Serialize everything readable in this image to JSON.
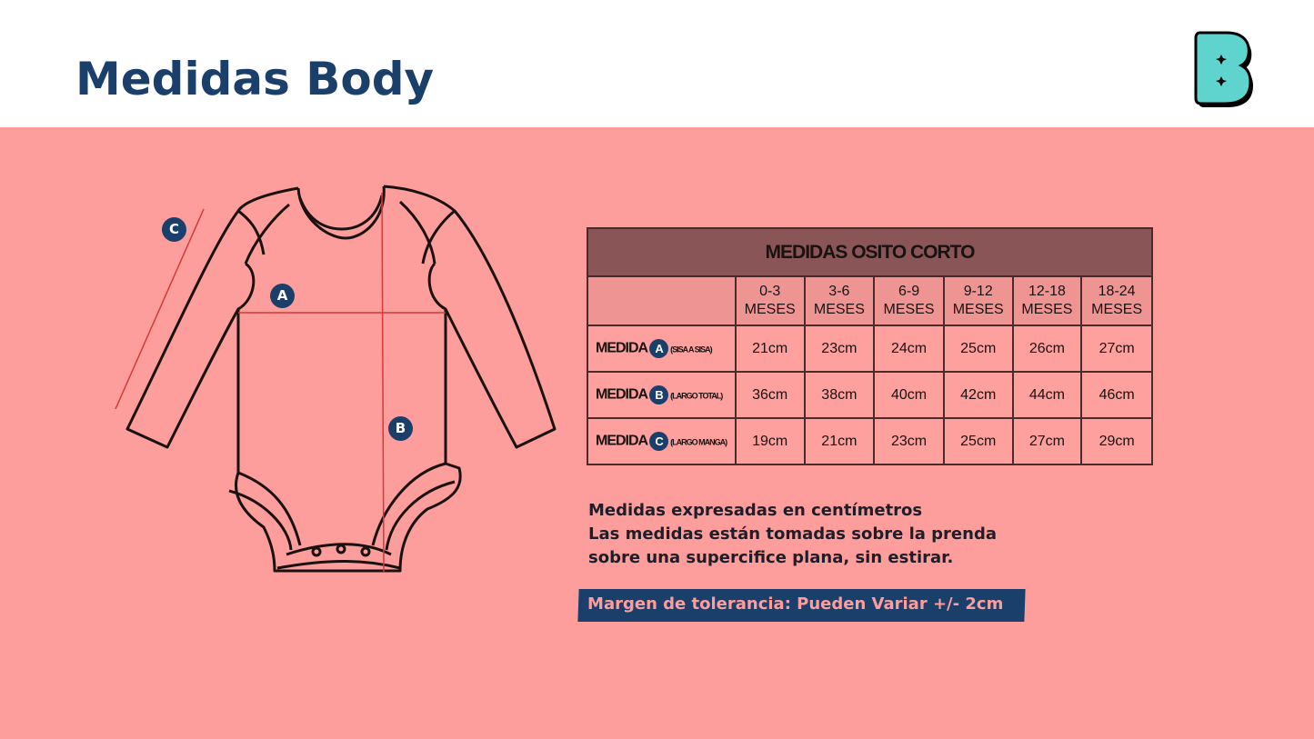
{
  "header": {
    "title": "Medidas Body",
    "logo_letter": "B"
  },
  "diagram": {
    "labels": [
      "A",
      "B",
      "C"
    ]
  },
  "table": {
    "title": "MEDIDAS OSITO CORTO",
    "columns": [
      [
        "0-3",
        "MESES"
      ],
      [
        "3-6",
        "MESES"
      ],
      [
        "6-9",
        "MESES"
      ],
      [
        "9-12",
        "MESES"
      ],
      [
        "12-18",
        "MESES"
      ],
      [
        "18-24",
        "MESES"
      ]
    ],
    "rows": [
      {
        "prefix": "MEDIDA",
        "letter": "A",
        "desc": "(SISA A SISA)",
        "values": [
          "21cm",
          "23cm",
          "24cm",
          "25cm",
          "26cm",
          "27cm"
        ]
      },
      {
        "prefix": "MEDIDA",
        "letter": "B",
        "desc": "(LARGO TOTAL)",
        "values": [
          "36cm",
          "38cm",
          "40cm",
          "42cm",
          "44cm",
          "46cm"
        ]
      },
      {
        "prefix": "MEDIDA",
        "letter": "C",
        "desc": "(LARGO MANGA)",
        "values": [
          "19cm",
          "21cm",
          "23cm",
          "25cm",
          "27cm",
          "29cm"
        ]
      }
    ]
  },
  "notes": [
    "Medidas expresadas en centímetros",
    "Las medidas están tomadas sobre la prenda",
    "sobre una supercifice plana, sin estirar."
  ],
  "tolerance": "Margen de tolerancia: Pueden Variar +/- 2cm",
  "colors": {
    "background": "#fe9e9c",
    "accent": "#1b3f6b",
    "table_header": "#8a5556",
    "logo": "#5fd4cf"
  }
}
